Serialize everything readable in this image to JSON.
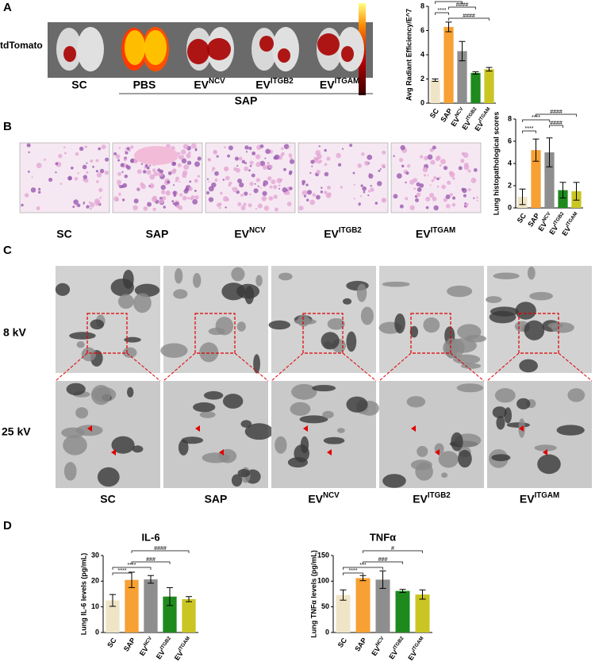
{
  "panel_a": {
    "label": "A",
    "row_label": "tdTomato",
    "image_labels": [
      "SC",
      "PBS",
      "EVNCV",
      "EVITGB2",
      "EVITGAM"
    ],
    "group_label": "SAP"
  },
  "panel_b": {
    "label": "B",
    "image_labels": [
      "SC",
      "SAP",
      "EVNCV",
      "EVITGB2",
      "EVITGAM"
    ]
  },
  "panel_c": {
    "label": "C",
    "row_labels": [
      "8 kV",
      "25 kV"
    ],
    "image_labels": [
      "SC",
      "SAP",
      "EVNCV",
      "EVITGB2",
      "EVITGAM"
    ]
  },
  "panel_d": {
    "label": "D"
  },
  "chart_data": [
    {
      "type": "bar",
      "y_label": "Avg Radiant Efficiency/E^7",
      "categories": [
        "SC",
        "SAP",
        "EVNCV",
        "EVITGB2",
        "EVITGAM"
      ],
      "values": [
        1.9,
        6.3,
        4.3,
        2.5,
        2.8
      ],
      "errors": [
        0.1,
        0.4,
        0.8,
        0.1,
        0.15
      ],
      "colors": [
        "#efe5c6",
        "#f7a033",
        "#8e8e8e",
        "#1e8a1e",
        "#c9c623"
      ],
      "ylim": [
        0,
        8
      ],
      "yticks": [
        0,
        2,
        4,
        6,
        8
      ],
      "annotations": [
        "***",
        "****",
        "####",
        "####"
      ]
    },
    {
      "type": "bar",
      "y_label": "Lung histopathological scores",
      "categories": [
        "SC",
        "SAP",
        "EVNCV",
        "EVITGB2",
        "EVITGAM"
      ],
      "values": [
        1,
        5.2,
        5,
        1.6,
        1.5
      ],
      "errors": [
        0.7,
        1,
        1.3,
        0.7,
        0.8
      ],
      "colors": [
        "#efe5c6",
        "#f7a033",
        "#8e8e8e",
        "#1e8a1e",
        "#c9c623"
      ],
      "ylim": [
        0,
        8
      ],
      "yticks": [
        0,
        2,
        4,
        6,
        8
      ],
      "annotations": [
        "****",
        "****",
        "####",
        "####"
      ]
    },
    {
      "type": "bar",
      "title": "IL-6",
      "y_label": "Lung IL-6 levels (pg/mL)",
      "categories": [
        "SC",
        "SAP",
        "EVNCV",
        "EVITGB2",
        "EVITGAM"
      ],
      "values": [
        12.5,
        20.5,
        20.7,
        14,
        13
      ],
      "errors": [
        2.3,
        3,
        1.5,
        3.5,
        1
      ],
      "colors": [
        "#efe5c6",
        "#f7a033",
        "#8e8e8e",
        "#1e8a1e",
        "#c9c623"
      ],
      "ylim": [
        0,
        30
      ],
      "yticks": [
        0,
        10,
        20,
        30
      ],
      "annotations": [
        "****",
        "****",
        "###",
        "####"
      ]
    },
    {
      "type": "bar",
      "title": "TNFα",
      "y_label": "Lung TNFα levels (pg/mL)",
      "categories": [
        "SC",
        "SAP",
        "EVNCV",
        "EVITGB2",
        "EVITGAM"
      ],
      "values": [
        73,
        106,
        103,
        81,
        74
      ],
      "errors": [
        10,
        5,
        17,
        3,
        9
      ],
      "colors": [
        "#efe5c6",
        "#f7a033",
        "#8e8e8e",
        "#1e8a1e",
        "#c9c623"
      ],
      "ylim": [
        0,
        150
      ],
      "yticks": [
        0,
        50,
        100,
        150
      ],
      "annotations": [
        "****",
        "***",
        "###",
        "#"
      ]
    }
  ]
}
